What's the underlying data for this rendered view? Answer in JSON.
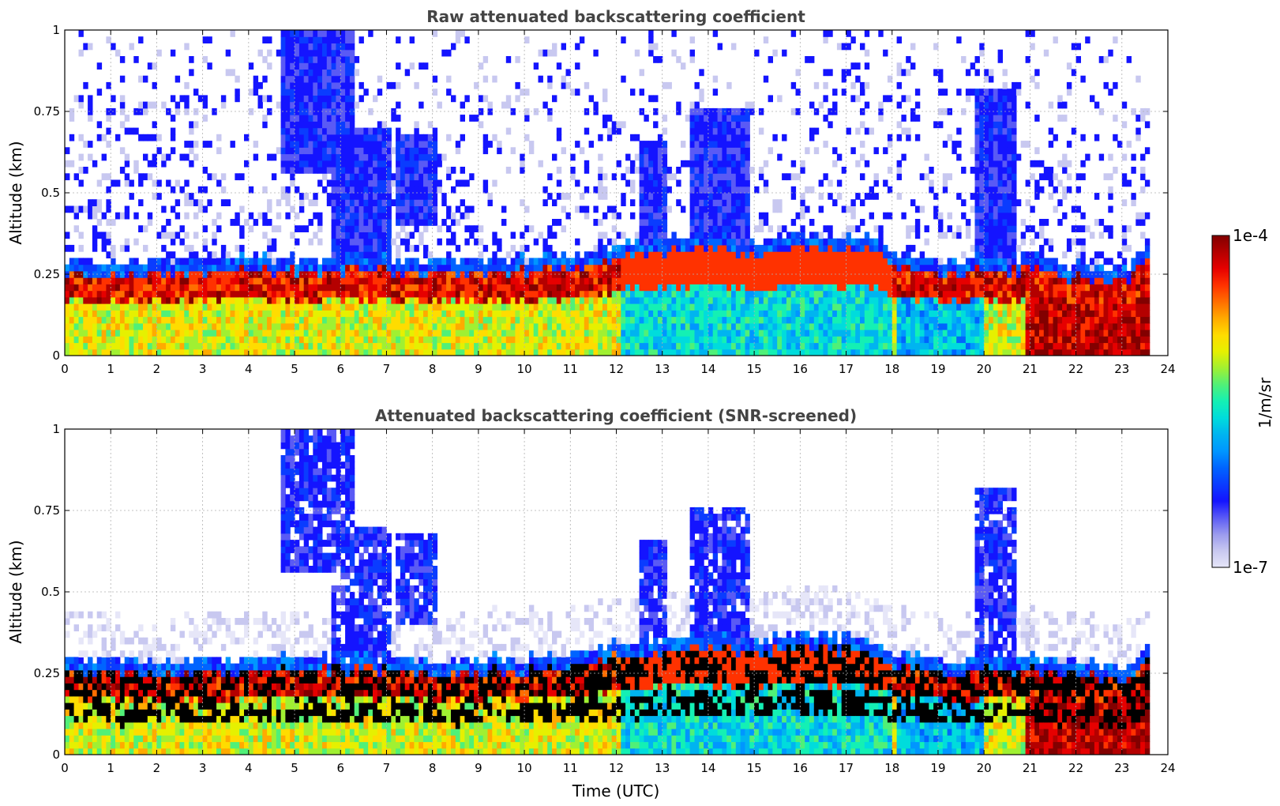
{
  "chart_data": [
    {
      "type": "heatmap",
      "title": "Raw attenuated backscattering coefficient",
      "xlabel": "",
      "ylabel": "Altitude (km)",
      "xlim": [
        0,
        24
      ],
      "ylim": [
        0,
        1
      ],
      "xticks": [
        "0",
        "1",
        "2",
        "3",
        "4",
        "5",
        "6",
        "7",
        "8",
        "9",
        "10",
        "11",
        "12",
        "13",
        "14",
        "15",
        "16",
        "17",
        "18",
        "19",
        "20",
        "21",
        "22",
        "23",
        "24"
      ],
      "yticks": [
        "0",
        "0.25",
        "0.5",
        "0.75",
        "1"
      ],
      "grid": true,
      "data_end_time": 23.6,
      "boundary_layer_height_km": [
        {
          "t": 0,
          "h": 0.24
        },
        {
          "t": 2,
          "h": 0.24
        },
        {
          "t": 4,
          "h": 0.25
        },
        {
          "t": 6,
          "h": 0.25
        },
        {
          "t": 7,
          "h": 0.25
        },
        {
          "t": 8,
          "h": 0.24
        },
        {
          "t": 10,
          "h": 0.25
        },
        {
          "t": 11,
          "h": 0.26
        },
        {
          "t": 12,
          "h": 0.29
        },
        {
          "t": 13,
          "h": 0.31
        },
        {
          "t": 14,
          "h": 0.32
        },
        {
          "t": 15,
          "h": 0.3
        },
        {
          "t": 16,
          "h": 0.33
        },
        {
          "t": 17,
          "h": 0.31
        },
        {
          "t": 17.5,
          "h": 0.31
        },
        {
          "t": 18,
          "h": 0.27
        },
        {
          "t": 19,
          "h": 0.24
        },
        {
          "t": 20,
          "h": 0.25
        },
        {
          "t": 21,
          "h": 0.25
        },
        {
          "t": 22,
          "h": 0.23
        },
        {
          "t": 23,
          "h": 0.22
        },
        {
          "t": 23.6,
          "h": 0.3
        }
      ],
      "aerosol_plumes": [
        {
          "t_start": 4.7,
          "t_end": 6.3,
          "alt_bottom_km": 0.55,
          "alt_top_km": 0.98
        },
        {
          "t_start": 5.8,
          "t_end": 7.0,
          "alt_bottom_km": 0.3,
          "alt_top_km": 0.7
        },
        {
          "t_start": 7.2,
          "t_end": 8.0,
          "alt_bottom_km": 0.4,
          "alt_top_km": 0.66
        },
        {
          "t_start": 12.5,
          "t_end": 13.0,
          "alt_bottom_km": 0.3,
          "alt_top_km": 0.65
        },
        {
          "t_start": 13.6,
          "t_end": 14.8,
          "alt_bottom_km": 0.3,
          "alt_top_km": 0.75
        },
        {
          "t_start": 19.8,
          "t_end": 20.7,
          "alt_bottom_km": 0.25,
          "alt_top_km": 0.8
        }
      ]
    },
    {
      "type": "heatmap",
      "title": "Attenuated backscattering coefficient (SNR-screened)",
      "xlabel": "Time (UTC)",
      "ylabel": "Altitude (km)",
      "xlim": [
        0,
        24
      ],
      "ylim": [
        0,
        1
      ],
      "xticks": [
        "0",
        "1",
        "2",
        "3",
        "4",
        "5",
        "6",
        "7",
        "8",
        "9",
        "10",
        "11",
        "12",
        "13",
        "14",
        "15",
        "16",
        "17",
        "18",
        "19",
        "20",
        "21",
        "22",
        "23",
        "24"
      ],
      "yticks": [
        "0",
        "0.25",
        "0.5",
        "0.75",
        "1"
      ],
      "grid": true,
      "data_end_time": 23.6
    }
  ],
  "colorbar": {
    "label": "1/m/sr",
    "max_label": "1e-4",
    "min_label": "1e-7",
    "scale": "log",
    "range": [
      1e-07,
      0.0001
    ],
    "colors": [
      "#e6e6f8",
      "#c8c8f0",
      "#9a9aee",
      "#5a5af5",
      "#1414ff",
      "#0a3cff",
      "#0064ff",
      "#0096ff",
      "#00b4f0",
      "#00dcdc",
      "#14f0b4",
      "#50f078",
      "#a0f032",
      "#e6f000",
      "#ffdc00",
      "#ffaa00",
      "#ff6e00",
      "#ff3200",
      "#e60000",
      "#b40000",
      "#820000"
    ]
  }
}
